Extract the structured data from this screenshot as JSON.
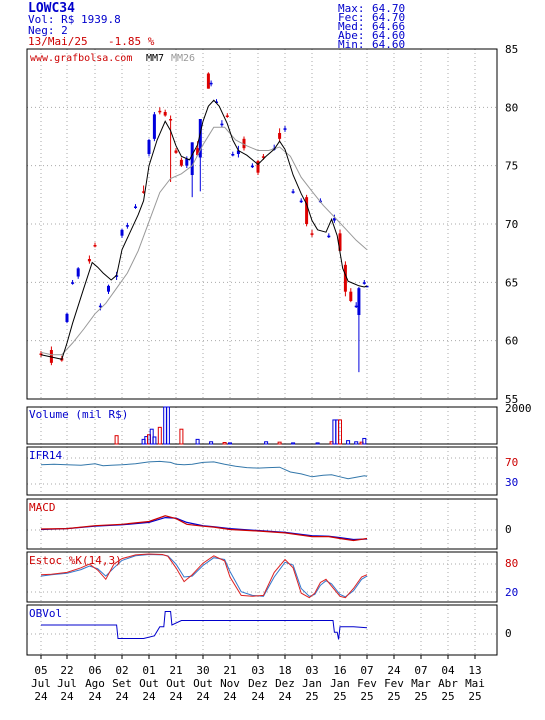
{
  "header": {
    "ticker": "LOWC34",
    "volume": "Vol: R$ 1939.8",
    "trades": "Neg: 2",
    "date": "13/Mai/25",
    "change": "-1.85 %",
    "stats_labels": [
      "Max:",
      "Fec:",
      "Med:",
      "Abe:",
      "Min:"
    ],
    "stats_values": [
      "64.70",
      "64.70",
      "64.66",
      "64.60",
      "64.60"
    ]
  },
  "price_panel": {
    "watermark": "www.grafbolsa.com",
    "legend_mm7": "MM7",
    "legend_mm26": "MM26"
  },
  "volume_panel": {
    "title": "Volume (mil R$)",
    "tick": "2000"
  },
  "ifr_panel": {
    "title": "IFR14",
    "ticks": [
      "70",
      "30"
    ]
  },
  "macd_panel": {
    "title": "MACD",
    "tick": "0"
  },
  "stoch_panel": {
    "title": "Estoc %K(14,3)",
    "ticks": [
      "80",
      "20"
    ]
  },
  "obv_panel": {
    "title": "OBVol",
    "tick": "0"
  },
  "x_axis": {
    "days": [
      "05",
      "22",
      "06",
      "02",
      "01",
      "21",
      "30",
      "21",
      "03",
      "18",
      "03",
      "16",
      "07",
      "24",
      "07",
      "04",
      "13"
    ],
    "months": [
      "Jul",
      "Jul",
      "Ago",
      "Set",
      "Out",
      "Out",
      "Out",
      "Nov",
      "Dez",
      "Dez",
      "Jan",
      "Jan",
      "Fev",
      "Fev",
      "Mar",
      "Abr",
      "Mai"
    ],
    "years": [
      "24",
      "24",
      "24",
      "24",
      "24",
      "24",
      "24",
      "24",
      "24",
      "24",
      "25",
      "25",
      "25",
      "25",
      "25",
      "25",
      "25"
    ]
  },
  "colors": {
    "up": "#0000dd",
    "down": "#dd0000",
    "mm7": "#000000",
    "mm26": "#999999",
    "grid": "#aaaaaa",
    "accent": "#0000cc"
  },
  "chart_data": {
    "type": "candlestick",
    "price_axis": {
      "ticks": [
        55,
        60,
        65,
        70,
        75,
        80,
        85
      ],
      "ylim": [
        55,
        85
      ]
    },
    "candles": [
      {
        "x": 0.0,
        "o": 58.9,
        "h": 59.1,
        "l": 58.6,
        "c": 58.8
      },
      {
        "x": 0.4,
        "o": 59.2,
        "h": 59.5,
        "l": 57.9,
        "c": 58.1
      },
      {
        "x": 0.8,
        "o": 58.5,
        "h": 58.7,
        "l": 58.2,
        "c": 58.3
      },
      {
        "x": 1.0,
        "o": 61.6,
        "h": 62.4,
        "l": 61.5,
        "c": 62.3
      },
      {
        "x": 1.2,
        "o": 65.0,
        "h": 65.2,
        "l": 64.8,
        "c": 65.0
      },
      {
        "x": 1.4,
        "o": 65.5,
        "h": 66.3,
        "l": 65.3,
        "c": 66.2
      },
      {
        "x": 1.8,
        "o": 67.0,
        "h": 67.3,
        "l": 66.6,
        "c": 66.8
      },
      {
        "x": 2.0,
        "o": 68.2,
        "h": 68.4,
        "l": 68.0,
        "c": 68.1
      },
      {
        "x": 2.2,
        "o": 62.9,
        "h": 63.2,
        "l": 62.6,
        "c": 63.0
      },
      {
        "x": 2.5,
        "o": 64.2,
        "h": 64.8,
        "l": 64.0,
        "c": 64.7
      },
      {
        "x": 2.8,
        "o": 65.5,
        "h": 65.9,
        "l": 65.2,
        "c": 65.6
      },
      {
        "x": 3.0,
        "o": 69.0,
        "h": 69.6,
        "l": 68.8,
        "c": 69.5
      },
      {
        "x": 3.2,
        "o": 69.8,
        "h": 70.1,
        "l": 69.6,
        "c": 69.9
      },
      {
        "x": 3.5,
        "o": 71.5,
        "h": 71.7,
        "l": 71.3,
        "c": 71.5
      },
      {
        "x": 3.8,
        "o": 72.8,
        "h": 73.3,
        "l": 72.6,
        "c": 72.7
      },
      {
        "x": 4.0,
        "o": 76.0,
        "h": 77.3,
        "l": 75.8,
        "c": 77.2
      },
      {
        "x": 4.2,
        "o": 77.3,
        "h": 79.6,
        "l": 77.1,
        "c": 79.4
      },
      {
        "x": 4.4,
        "o": 79.7,
        "h": 80.0,
        "l": 79.4,
        "c": 79.6
      },
      {
        "x": 4.6,
        "o": 79.6,
        "h": 79.8,
        "l": 79.2,
        "c": 79.3
      },
      {
        "x": 4.8,
        "o": 79.0,
        "h": 79.3,
        "l": 73.6,
        "c": 78.9
      },
      {
        "x": 5.0,
        "o": 76.3,
        "h": 76.5,
        "l": 76.0,
        "c": 76.1
      },
      {
        "x": 5.2,
        "o": 75.5,
        "h": 75.7,
        "l": 74.9,
        "c": 75.0
      },
      {
        "x": 5.4,
        "o": 75.0,
        "h": 75.8,
        "l": 74.8,
        "c": 75.6
      },
      {
        "x": 5.6,
        "o": 74.2,
        "h": 77.0,
        "l": 72.3,
        "c": 77.0
      },
      {
        "x": 5.8,
        "o": 76.5,
        "h": 77.1,
        "l": 76.0,
        "c": 75.9
      },
      {
        "x": 5.9,
        "o": 75.7,
        "h": 79.0,
        "l": 72.8,
        "c": 79.0
      },
      {
        "x": 6.2,
        "o": 82.9,
        "h": 83.0,
        "l": 81.6,
        "c": 81.6
      },
      {
        "x": 6.3,
        "o": 82.0,
        "h": 82.3,
        "l": 81.8,
        "c": 82.1
      },
      {
        "x": 6.5,
        "o": 80.5,
        "h": 80.7,
        "l": 80.4,
        "c": 80.5
      },
      {
        "x": 6.7,
        "o": 78.6,
        "h": 78.9,
        "l": 78.3,
        "c": 78.6
      },
      {
        "x": 6.9,
        "o": 79.3,
        "h": 79.5,
        "l": 79.1,
        "c": 79.2
      },
      {
        "x": 7.1,
        "o": 76.0,
        "h": 76.2,
        "l": 75.8,
        "c": 76.0
      },
      {
        "x": 7.3,
        "o": 76.0,
        "h": 76.7,
        "l": 75.7,
        "c": 76.3
      },
      {
        "x": 7.5,
        "o": 77.3,
        "h": 77.5,
        "l": 76.3,
        "c": 76.5
      },
      {
        "x": 7.8,
        "o": 75.0,
        "h": 75.2,
        "l": 74.8,
        "c": 75.0
      },
      {
        "x": 8.0,
        "o": 75.4,
        "h": 75.5,
        "l": 74.2,
        "c": 74.4
      },
      {
        "x": 8.2,
        "o": 75.8,
        "h": 76.0,
        "l": 75.5,
        "c": 75.7
      },
      {
        "x": 8.6,
        "o": 76.5,
        "h": 76.8,
        "l": 76.3,
        "c": 76.5
      },
      {
        "x": 8.8,
        "o": 77.8,
        "h": 78.2,
        "l": 77.1,
        "c": 77.3
      },
      {
        "x": 9.0,
        "o": 78.1,
        "h": 78.4,
        "l": 77.9,
        "c": 78.2
      },
      {
        "x": 9.3,
        "o": 72.8,
        "h": 73.0,
        "l": 72.6,
        "c": 72.8
      },
      {
        "x": 9.6,
        "o": 72.0,
        "h": 72.2,
        "l": 71.8,
        "c": 72.0
      },
      {
        "x": 9.8,
        "o": 72.3,
        "h": 72.5,
        "l": 69.8,
        "c": 70.0
      },
      {
        "x": 10.0,
        "o": 69.2,
        "h": 69.5,
        "l": 68.9,
        "c": 69.1
      },
      {
        "x": 10.3,
        "o": 72.0,
        "h": 72.2,
        "l": 71.8,
        "c": 72.0
      },
      {
        "x": 10.6,
        "o": 69.0,
        "h": 69.2,
        "l": 68.8,
        "c": 69.0
      },
      {
        "x": 10.8,
        "o": 70.3,
        "h": 70.8,
        "l": 70.1,
        "c": 70.5
      },
      {
        "x": 11.0,
        "o": 69.2,
        "h": 69.5,
        "l": 67.5,
        "c": 67.7
      },
      {
        "x": 11.2,
        "o": 66.5,
        "h": 66.8,
        "l": 63.8,
        "c": 64.2
      },
      {
        "x": 11.4,
        "o": 64.2,
        "h": 64.5,
        "l": 63.3,
        "c": 63.4
      },
      {
        "x": 11.6,
        "o": 63.0,
        "h": 63.3,
        "l": 62.8,
        "c": 63.0
      },
      {
        "x": 11.7,
        "o": 62.2,
        "h": 64.6,
        "l": 57.3,
        "c": 64.5
      },
      {
        "x": 11.9,
        "o": 65.0,
        "h": 65.2,
        "l": 64.8,
        "c": 65.0
      },
      {
        "x": 12.0,
        "o": 64.6,
        "h": 64.7,
        "l": 64.6,
        "c": 64.7
      }
    ],
    "mm7": [
      [
        0,
        58.8
      ],
      [
        0.4,
        58.6
      ],
      [
        0.8,
        58.4
      ],
      [
        1.0,
        59.8
      ],
      [
        1.2,
        61.5
      ],
      [
        1.6,
        64.5
      ],
      [
        1.9,
        66.7
      ],
      [
        2.1,
        66.3
      ],
      [
        2.3,
        65.8
      ],
      [
        2.6,
        65.2
      ],
      [
        2.8,
        65.6
      ],
      [
        3.0,
        67.8
      ],
      [
        3.3,
        69.3
      ],
      [
        3.6,
        70.8
      ],
      [
        3.8,
        72.0
      ],
      [
        4.0,
        75.0
      ],
      [
        4.3,
        77.2
      ],
      [
        4.6,
        78.8
      ],
      [
        4.8,
        78.0
      ],
      [
        5.0,
        76.7
      ],
      [
        5.2,
        75.8
      ],
      [
        5.5,
        75.5
      ],
      [
        5.8,
        76.8
      ],
      [
        6.0,
        78.8
      ],
      [
        6.2,
        80.1
      ],
      [
        6.4,
        80.6
      ],
      [
        6.6,
        80.1
      ],
      [
        6.9,
        78.6
      ],
      [
        7.1,
        77.2
      ],
      [
        7.3,
        76.3
      ],
      [
        7.6,
        75.9
      ],
      [
        7.8,
        75.5
      ],
      [
        8.0,
        75.1
      ],
      [
        8.3,
        75.8
      ],
      [
        8.6,
        76.4
      ],
      [
        8.8,
        77.1
      ],
      [
        9.0,
        76.4
      ],
      [
        9.3,
        74.2
      ],
      [
        9.6,
        72.6
      ],
      [
        9.8,
        71.7
      ],
      [
        10.0,
        70.3
      ],
      [
        10.2,
        69.5
      ],
      [
        10.5,
        69.3
      ],
      [
        10.7,
        70.4
      ],
      [
        10.9,
        69.0
      ],
      [
        11.1,
        66.2
      ],
      [
        11.3,
        65.1
      ],
      [
        11.5,
        64.9
      ],
      [
        11.7,
        64.7
      ],
      [
        11.9,
        64.6
      ],
      [
        12.0,
        64.7
      ]
    ],
    "mm26": [
      [
        0,
        59.0
      ],
      [
        0.4,
        58.8
      ],
      [
        0.8,
        58.8
      ],
      [
        1.2,
        59.8
      ],
      [
        1.6,
        61.0
      ],
      [
        2.0,
        62.3
      ],
      [
        2.4,
        63.2
      ],
      [
        2.8,
        64.5
      ],
      [
        3.2,
        65.8
      ],
      [
        3.6,
        67.7
      ],
      [
        4.0,
        70.2
      ],
      [
        4.4,
        72.7
      ],
      [
        4.8,
        73.9
      ],
      [
        5.2,
        74.3
      ],
      [
        5.6,
        75.0
      ],
      [
        6.0,
        76.8
      ],
      [
        6.4,
        78.3
      ],
      [
        6.8,
        78.3
      ],
      [
        7.2,
        77.2
      ],
      [
        7.6,
        76.7
      ],
      [
        8.0,
        76.3
      ],
      [
        8.4,
        76.3
      ],
      [
        8.8,
        76.6
      ],
      [
        9.2,
        75.8
      ],
      [
        9.6,
        74.0
      ],
      [
        10.0,
        72.8
      ],
      [
        10.4,
        71.6
      ],
      [
        10.8,
        70.6
      ],
      [
        11.2,
        69.6
      ],
      [
        11.6,
        68.6
      ],
      [
        12.0,
        67.8
      ]
    ],
    "volume": {
      "ylim": [
        0,
        2000
      ],
      "bars": [
        [
          2.8,
          450
        ],
        [
          3.8,
          250
        ],
        [
          3.9,
          400
        ],
        [
          4.0,
          500
        ],
        [
          4.1,
          800
        ],
        [
          4.2,
          380
        ],
        [
          4.4,
          900
        ],
        [
          4.6,
          2000
        ],
        [
          4.7,
          2000
        ],
        [
          5.2,
          800
        ],
        [
          5.8,
          250
        ],
        [
          6.3,
          120
        ],
        [
          6.8,
          80
        ],
        [
          7.0,
          60
        ],
        [
          8.3,
          120
        ],
        [
          8.8,
          100
        ],
        [
          9.3,
          60
        ],
        [
          10.2,
          60
        ],
        [
          10.7,
          120
        ],
        [
          10.8,
          1300
        ],
        [
          10.9,
          1300
        ],
        [
          11.0,
          1300
        ],
        [
          11.3,
          180
        ],
        [
          11.6,
          120
        ],
        [
          11.8,
          100
        ],
        [
          11.9,
          300
        ]
      ]
    },
    "ifr14": [
      [
        0,
        63
      ],
      [
        0.5,
        64
      ],
      [
        1.0,
        63
      ],
      [
        1.5,
        62
      ],
      [
        2.0,
        65
      ],
      [
        2.3,
        61
      ],
      [
        2.6,
        62
      ],
      [
        3.0,
        63
      ],
      [
        3.5,
        65
      ],
      [
        4.0,
        69
      ],
      [
        4.4,
        70
      ],
      [
        4.8,
        68
      ],
      [
        5.0,
        64
      ],
      [
        5.3,
        63
      ],
      [
        5.6,
        64
      ],
      [
        6.0,
        68
      ],
      [
        6.4,
        69
      ],
      [
        6.8,
        64
      ],
      [
        7.2,
        60
      ],
      [
        7.6,
        57
      ],
      [
        8.0,
        56
      ],
      [
        8.4,
        57
      ],
      [
        8.8,
        58
      ],
      [
        9.2,
        48
      ],
      [
        9.6,
        44
      ],
      [
        10.0,
        38
      ],
      [
        10.4,
        41
      ],
      [
        10.7,
        42
      ],
      [
        11.0,
        38
      ],
      [
        11.3,
        34
      ],
      [
        11.6,
        37
      ],
      [
        11.9,
        40
      ],
      [
        12.0,
        39
      ]
    ],
    "macd": [
      [
        0,
        0.1
      ],
      [
        1,
        0.15
      ],
      [
        2,
        0.45
      ],
      [
        3,
        0.6
      ],
      [
        4,
        0.9
      ],
      [
        4.6,
        1.5
      ],
      [
        5,
        1.2
      ],
      [
        5.4,
        0.6
      ],
      [
        6,
        0.4
      ],
      [
        6.4,
        0.3
      ],
      [
        7,
        0.05
      ],
      [
        8,
        -0.1
      ],
      [
        9,
        -0.3
      ],
      [
        10,
        -0.7
      ],
      [
        10.6,
        -0.7
      ],
      [
        11,
        -0.9
      ],
      [
        11.5,
        -1.1
      ],
      [
        12,
        -0.9
      ]
    ],
    "macd_signal": [
      [
        0,
        0.05
      ],
      [
        1,
        0.15
      ],
      [
        2,
        0.4
      ],
      [
        3,
        0.55
      ],
      [
        4,
        0.8
      ],
      [
        4.6,
        1.3
      ],
      [
        5,
        1.25
      ],
      [
        5.4,
        0.8
      ],
      [
        6,
        0.45
      ],
      [
        6.4,
        0.35
      ],
      [
        7,
        0.15
      ],
      [
        8,
        -0.05
      ],
      [
        9,
        -0.25
      ],
      [
        10,
        -0.6
      ],
      [
        10.6,
        -0.65
      ],
      [
        11,
        -0.8
      ],
      [
        11.5,
        -1.0
      ],
      [
        12,
        -0.95
      ]
    ],
    "stoch_k": [
      [
        0,
        55
      ],
      [
        0.4,
        56
      ],
      [
        1,
        60
      ],
      [
        1.5,
        70
      ],
      [
        1.8,
        78
      ],
      [
        2.1,
        65
      ],
      [
        2.4,
        45
      ],
      [
        2.7,
        78
      ],
      [
        3,
        90
      ],
      [
        3.5,
        98
      ],
      [
        4,
        100
      ],
      [
        4.5,
        99
      ],
      [
        4.7,
        95
      ],
      [
        5,
        70
      ],
      [
        5.3,
        40
      ],
      [
        5.6,
        55
      ],
      [
        6,
        80
      ],
      [
        6.4,
        96
      ],
      [
        6.8,
        85
      ],
      [
        7,
        50
      ],
      [
        7.4,
        10
      ],
      [
        7.8,
        8
      ],
      [
        8.2,
        10
      ],
      [
        8.6,
        60
      ],
      [
        9,
        88
      ],
      [
        9.3,
        70
      ],
      [
        9.6,
        15
      ],
      [
        9.9,
        5
      ],
      [
        10.1,
        15
      ],
      [
        10.3,
        38
      ],
      [
        10.5,
        45
      ],
      [
        10.7,
        30
      ],
      [
        11,
        8
      ],
      [
        11.2,
        5
      ],
      [
        11.5,
        25
      ],
      [
        11.8,
        50
      ],
      [
        12,
        55
      ]
    ],
    "stoch_d": [
      [
        0,
        52
      ],
      [
        0.4,
        55
      ],
      [
        1,
        58
      ],
      [
        1.5,
        66
      ],
      [
        1.8,
        74
      ],
      [
        2.1,
        68
      ],
      [
        2.4,
        52
      ],
      [
        2.7,
        70
      ],
      [
        3,
        86
      ],
      [
        3.5,
        96
      ],
      [
        4,
        99
      ],
      [
        4.5,
        98
      ],
      [
        4.7,
        96
      ],
      [
        5,
        78
      ],
      [
        5.3,
        50
      ],
      [
        5.6,
        52
      ],
      [
        6,
        75
      ],
      [
        6.4,
        92
      ],
      [
        6.8,
        88
      ],
      [
        7,
        62
      ],
      [
        7.4,
        18
      ],
      [
        7.8,
        10
      ],
      [
        8.2,
        8
      ],
      [
        8.6,
        50
      ],
      [
        9,
        82
      ],
      [
        9.3,
        76
      ],
      [
        9.6,
        25
      ],
      [
        9.9,
        8
      ],
      [
        10.1,
        12
      ],
      [
        10.3,
        32
      ],
      [
        10.5,
        42
      ],
      [
        10.7,
        35
      ],
      [
        11,
        12
      ],
      [
        11.2,
        7
      ],
      [
        11.5,
        20
      ],
      [
        11.8,
        45
      ],
      [
        12,
        52
      ]
    ],
    "obv": [
      [
        0,
        1
      ],
      [
        2.8,
        1
      ],
      [
        2.85,
        -0.5
      ],
      [
        3.8,
        -0.5
      ],
      [
        4.2,
        -0.2
      ],
      [
        4.4,
        0.8
      ],
      [
        4.55,
        0.8
      ],
      [
        4.6,
        2.5
      ],
      [
        4.8,
        2.5
      ],
      [
        4.85,
        1
      ],
      [
        5.2,
        1.5
      ],
      [
        6.3,
        1.5
      ],
      [
        10.75,
        1.5
      ],
      [
        10.8,
        0.2
      ],
      [
        10.9,
        0.2
      ],
      [
        10.95,
        -0.6
      ],
      [
        11.0,
        0.8
      ],
      [
        11.5,
        0.8
      ],
      [
        12,
        0.7
      ]
    ]
  }
}
